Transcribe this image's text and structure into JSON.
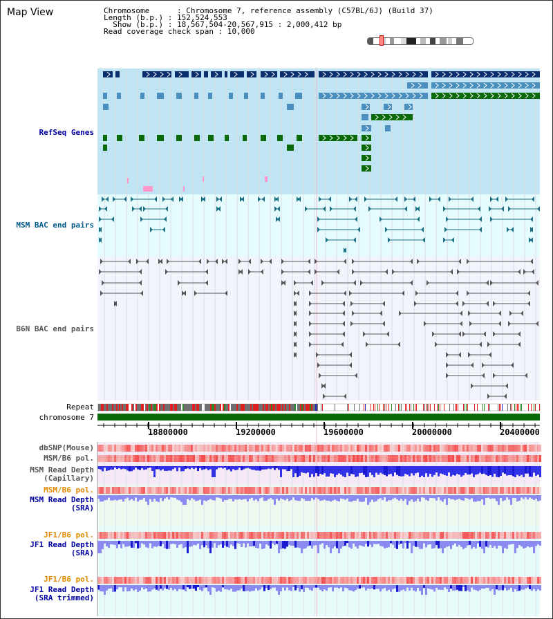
{
  "title": "Map View",
  "info": {
    "chromosome_label": "Chromosome",
    "chromosome_value": "Chromosome 7, reference assembly (C57BL/6J) (Build 37)",
    "length_label": "Length (b.p.)",
    "length_value": "152,524,553",
    "show_label": "Show (b.p.)",
    "show_value": "18,567,504-20,567,915 : 2,000,412 bp",
    "coverage_label": "Read coverage check span",
    "coverage_value": "10,000"
  },
  "tracks": {
    "refseq": "RefSeq Genes",
    "msm_bac": "MSM BAC end pairs",
    "b6n_bac": "B6N BAC end pairs",
    "repeat": "Repeat",
    "chromosome": "chromosome 7",
    "dbsnp": "dbSNP(Mouse)",
    "msm_b6_pol_1": "MSM/B6 pol.",
    "msm_read_depth_cap_1": "MSM Read Depth",
    "msm_read_depth_cap_2": "(Capillary)",
    "msm_b6_pol_2": "MSM/B6 pol.",
    "msm_read_depth_sra_1": "MSM Read Depth",
    "msm_read_depth_sra_2": "(SRA)",
    "jf1_b6_pol_1": "JF1/B6 pol.",
    "jf1_read_depth_sra_1": "JF1 Read Depth",
    "jf1_read_depth_sra_2": "(SRA)",
    "jf1_b6_pol_2": "JF1/B6 pol.",
    "jf1_read_depth_trim_1": "JF1 Read Depth",
    "jf1_read_depth_trim_2": "(SRA trimmed)"
  },
  "axis": {
    "ticks": [
      "18800000",
      "19200000",
      "19600000",
      "20000000",
      "20400000"
    ]
  },
  "colors": {
    "refseq_bg": "#bfe4f4",
    "bac_bg": "#e6fbfb",
    "b6n_bg": "#f2f4fb",
    "gene_navy": "#0a2e6e",
    "gene_blue": "#4a8fbd",
    "gene_green": "#0a6a0a",
    "bac_teal": "#1a6f86",
    "bac_grey": "#555555",
    "chromosome_bar": "#0a6a0a",
    "depth_blue": "#3232e8",
    "depth_light_blue": "#8a8af0",
    "pol_red": "#f04040"
  }
}
